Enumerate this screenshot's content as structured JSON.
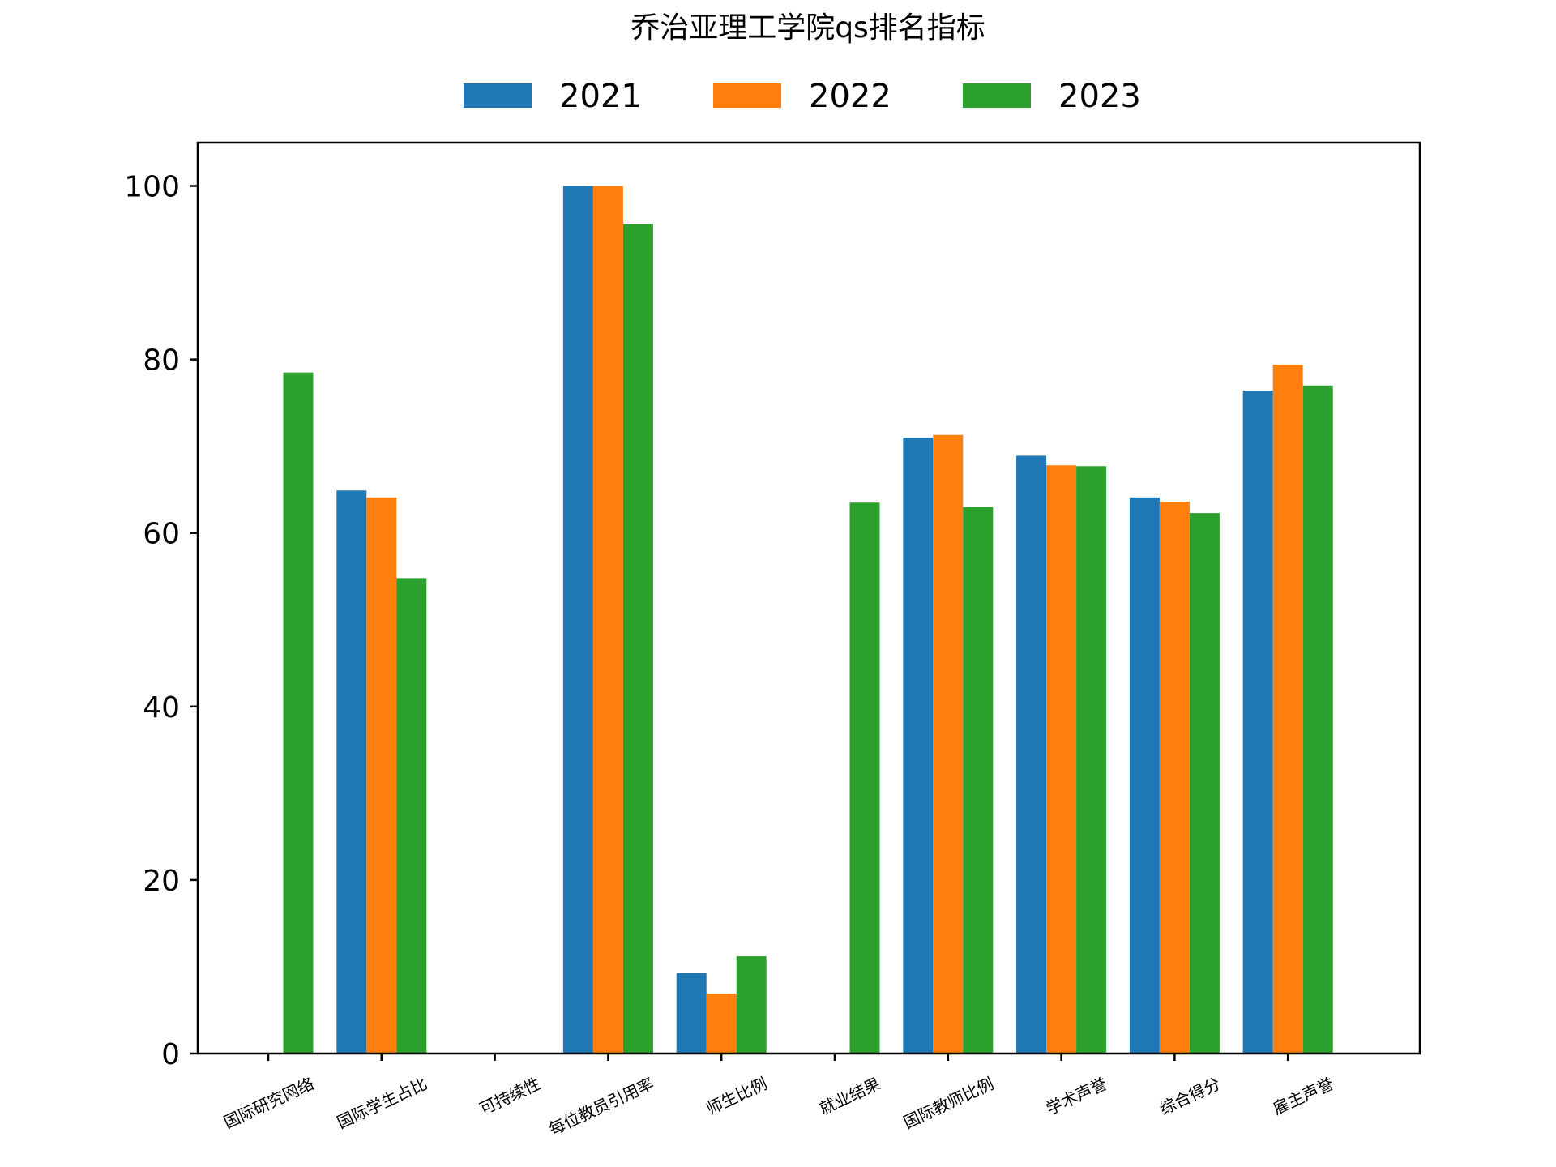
{
  "chart_data": {
    "type": "bar",
    "title": "乔治亚理工学院qs排名指标",
    "xlabel": "",
    "ylabel": "",
    "categories": [
      "国际研究网络",
      "国际学生占比",
      "可持续性",
      "每位教员引用率",
      "师生比例",
      "就业结果",
      "国际教师比例",
      "学术声誉",
      "综合得分",
      "雇主声誉"
    ],
    "series": [
      {
        "name": "2021",
        "color": "#1f77b4",
        "values": [
          null,
          64.9,
          null,
          100.0,
          9.3,
          null,
          71.0,
          68.9,
          64.1,
          76.4
        ]
      },
      {
        "name": "2022",
        "color": "#ff7f0e",
        "values": [
          null,
          64.1,
          null,
          100.0,
          6.9,
          null,
          71.3,
          67.8,
          63.6,
          79.4
        ]
      },
      {
        "name": "2023",
        "color": "#2ca02c",
        "values": [
          78.5,
          54.8,
          null,
          95.6,
          11.2,
          63.5,
          63.0,
          67.7,
          62.3,
          77.0
        ]
      }
    ],
    "ylim": [
      0,
      105
    ],
    "yticks": [
      0,
      20,
      40,
      60,
      80,
      100
    ],
    "legend_position": "top-center",
    "grid": false
  }
}
